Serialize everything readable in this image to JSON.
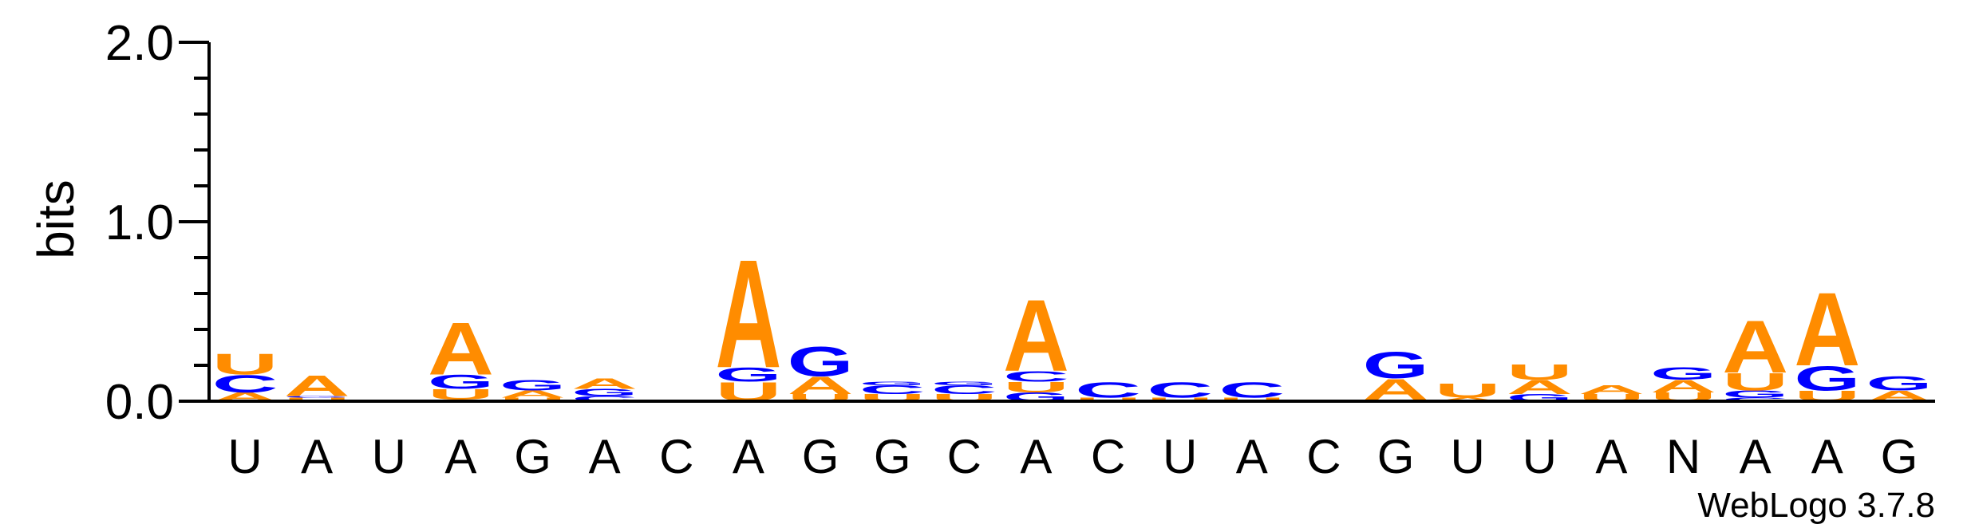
{
  "chart_data": {
    "type": "sequence-logo",
    "ylabel": "bits",
    "ylim": [
      0,
      2.0
    ],
    "yticks": [
      {
        "value": 0.0,
        "label": "0.0"
      },
      {
        "value": 1.0,
        "label": "1.0"
      },
      {
        "value": 2.0,
        "label": "2.0"
      }
    ],
    "ytick_minor_step": 0.2,
    "colors": {
      "A": "#FF8C00",
      "U": "#FF8C00",
      "G": "#0000FF",
      "C": "#0000FF"
    },
    "positions": [
      {
        "label": "U",
        "stack": [
          {
            "letter": "A",
            "bits": 0.05
          },
          {
            "letter": "C",
            "bits": 0.1
          },
          {
            "letter": "U",
            "bits": 0.12
          }
        ]
      },
      {
        "label": "A",
        "stack": [
          {
            "letter": "U",
            "bits": 0.02
          },
          {
            "letter": "G",
            "bits": 0.01
          },
          {
            "letter": "A",
            "bits": 0.12
          }
        ]
      },
      {
        "label": "U",
        "stack": []
      },
      {
        "label": "A",
        "stack": [
          {
            "letter": "C",
            "bits": 0.01
          },
          {
            "letter": "U",
            "bits": 0.06
          },
          {
            "letter": "G",
            "bits": 0.08
          },
          {
            "letter": "A",
            "bits": 0.3
          }
        ]
      },
      {
        "label": "G",
        "stack": [
          {
            "letter": "U",
            "bits": 0.02
          },
          {
            "letter": "A",
            "bits": 0.04
          },
          {
            "letter": "G",
            "bits": 0.06
          }
        ]
      },
      {
        "label": "A",
        "stack": [
          {
            "letter": "C",
            "bits": 0.03
          },
          {
            "letter": "G",
            "bits": 0.04
          },
          {
            "letter": "A",
            "bits": 0.06
          }
        ]
      },
      {
        "label": "C",
        "stack": []
      },
      {
        "label": "A",
        "stack": [
          {
            "letter": "U",
            "bits": 0.11
          },
          {
            "letter": "G",
            "bits": 0.08
          },
          {
            "letter": "A",
            "bits": 0.62
          }
        ]
      },
      {
        "label": "G",
        "stack": [
          {
            "letter": "U",
            "bits": 0.04
          },
          {
            "letter": "A",
            "bits": 0.1
          },
          {
            "letter": "G",
            "bits": 0.17
          }
        ]
      },
      {
        "label": "G",
        "stack": [
          {
            "letter": "U",
            "bits": 0.04
          },
          {
            "letter": "C",
            "bits": 0.05
          },
          {
            "letter": "G",
            "bits": 0.02
          }
        ]
      },
      {
        "label": "C",
        "stack": [
          {
            "letter": "U",
            "bits": 0.04
          },
          {
            "letter": "C",
            "bits": 0.05
          },
          {
            "letter": "G",
            "bits": 0.02
          }
        ]
      },
      {
        "label": "A",
        "stack": [
          {
            "letter": "G",
            "bits": 0.05
          },
          {
            "letter": "U",
            "bits": 0.06
          },
          {
            "letter": "C",
            "bits": 0.06
          },
          {
            "letter": "A",
            "bits": 0.41
          }
        ]
      },
      {
        "label": "C",
        "stack": [
          {
            "letter": "U",
            "bits": 0.02
          },
          {
            "letter": "C",
            "bits": 0.09
          }
        ]
      },
      {
        "label": "U",
        "stack": [
          {
            "letter": "U",
            "bits": 0.02
          },
          {
            "letter": "C",
            "bits": 0.09
          }
        ]
      },
      {
        "label": "A",
        "stack": [
          {
            "letter": "U",
            "bits": 0.02
          },
          {
            "letter": "C",
            "bits": 0.09
          }
        ]
      },
      {
        "label": "C",
        "stack": []
      },
      {
        "label": "G",
        "stack": [
          {
            "letter": "U",
            "bits": 0.01
          },
          {
            "letter": "A",
            "bits": 0.12
          },
          {
            "letter": "G",
            "bits": 0.15
          }
        ]
      },
      {
        "label": "U",
        "stack": [
          {
            "letter": "A",
            "bits": 0.02
          },
          {
            "letter": "U",
            "bits": 0.08
          }
        ]
      },
      {
        "label": "U",
        "stack": [
          {
            "letter": "G",
            "bits": 0.04
          },
          {
            "letter": "A",
            "bits": 0.08
          },
          {
            "letter": "U",
            "bits": 0.09
          }
        ]
      },
      {
        "label": "A",
        "stack": [
          {
            "letter": "U",
            "bits": 0.04
          },
          {
            "letter": "A",
            "bits": 0.05
          }
        ]
      },
      {
        "label": "N",
        "stack": [
          {
            "letter": "U",
            "bits": 0.05
          },
          {
            "letter": "A",
            "bits": 0.07
          },
          {
            "letter": "G",
            "bits": 0.07
          }
        ]
      },
      {
        "label": "A",
        "stack": [
          {
            "letter": "C",
            "bits": 0.02
          },
          {
            "letter": "G",
            "bits": 0.04
          },
          {
            "letter": "U",
            "bits": 0.1
          },
          {
            "letter": "A",
            "bits": 0.3
          }
        ]
      },
      {
        "label": "A",
        "stack": [
          {
            "letter": "U",
            "bits": 0.06
          },
          {
            "letter": "G",
            "bits": 0.14
          },
          {
            "letter": "A",
            "bits": 0.42
          }
        ]
      },
      {
        "label": "G",
        "stack": [
          {
            "letter": "A",
            "bits": 0.06
          },
          {
            "letter": "G",
            "bits": 0.08
          }
        ]
      }
    ]
  },
  "footer": {
    "credit": "WebLogo 3.7.8"
  }
}
